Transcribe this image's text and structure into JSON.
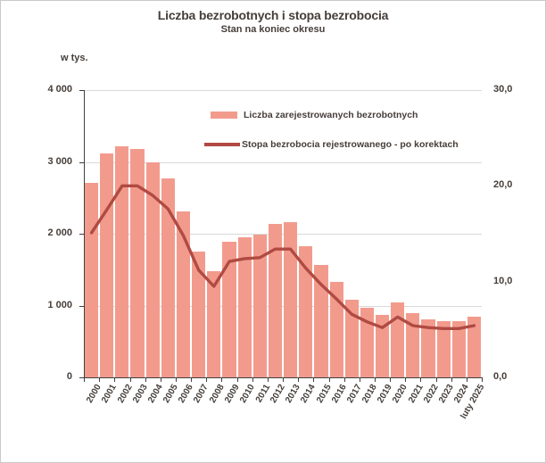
{
  "chart_data": {
    "type": "combo-bar-line",
    "title": "Liczba bezrobotnych i stopa bezrobocia",
    "subtitle": "Stan na koniec okresu",
    "categories": [
      "2000",
      "2001",
      "2002",
      "2003",
      "2004",
      "2005",
      "2006",
      "2007",
      "2008",
      "2009",
      "2010",
      "2011",
      "2012",
      "2013",
      "2014",
      "2015",
      "2016",
      "2017",
      "2018",
      "2019",
      "2020",
      "2021",
      "2022",
      "2023",
      "2024",
      "luty 2025"
    ],
    "series": [
      {
        "name": "Liczba zarejestrowanych bezrobotnych",
        "type": "bar",
        "axis": "left",
        "values": [
          2703,
          3115,
          3217,
          3176,
          3000,
          2773,
          2309,
          1747,
          1474,
          1893,
          1955,
          1983,
          2137,
          2158,
          1825,
          1563,
          1335,
          1082,
          969,
          866,
          1046,
          895,
          812,
          788,
          787,
          846
        ]
      },
      {
        "name": "Stopa bezrobocia rejestrowanego - po korektach",
        "type": "line",
        "axis": "right",
        "values": [
          15.1,
          17.5,
          20.0,
          20.0,
          19.0,
          17.6,
          14.8,
          11.2,
          9.5,
          12.1,
          12.4,
          12.5,
          13.4,
          13.4,
          11.4,
          9.7,
          8.2,
          6.6,
          5.8,
          5.2,
          6.3,
          5.4,
          5.2,
          5.1,
          5.1,
          5.4
        ]
      }
    ],
    "left_axis": {
      "label": "w tys.",
      "range": [
        0,
        4000
      ],
      "ticks": [
        0,
        1000,
        2000,
        3000,
        4000
      ],
      "tick_labels": [
        "0",
        "1 000",
        "2 000",
        "3 000",
        "4 000"
      ]
    },
    "right_axis": {
      "range": [
        0,
        30
      ],
      "ticks": [
        0,
        10,
        20,
        30
      ],
      "tick_labels": [
        "0,0",
        "10,0",
        "20,0",
        "30,0"
      ]
    },
    "grid": true,
    "legend_position": "inside-top"
  },
  "colors": {
    "bar": "#F29B8D",
    "line": "#B04A42",
    "grid": "#D9D9D9",
    "axis": "#3F3F3F",
    "text": "#453E3A",
    "frame_border": "#C9C9C9"
  }
}
